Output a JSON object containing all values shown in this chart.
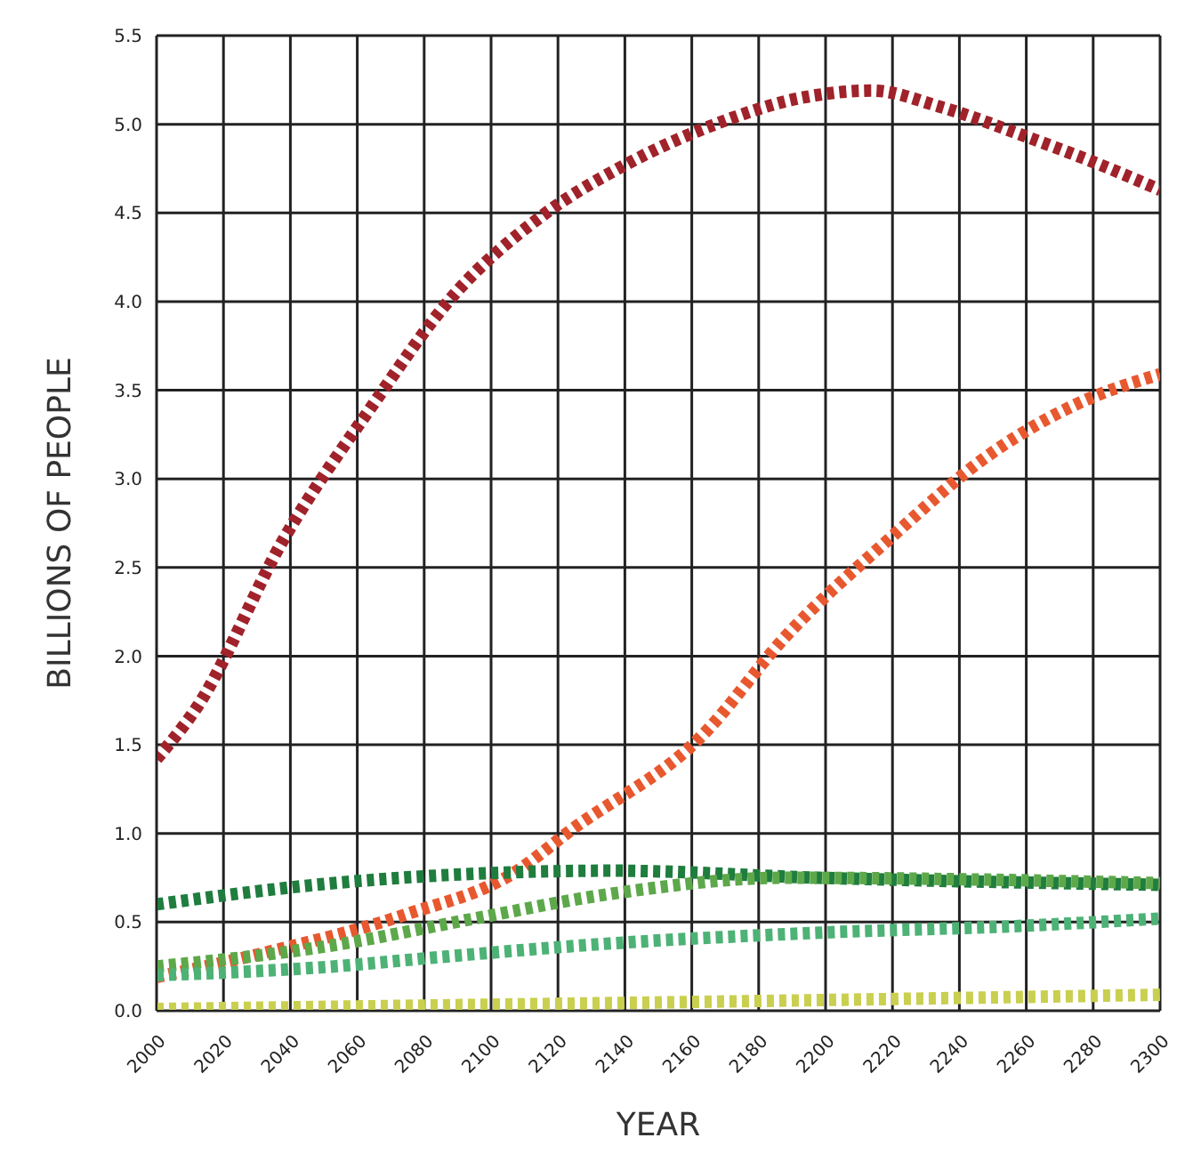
{
  "chart_data": {
    "type": "line",
    "xlabel": "YEAR",
    "ylabel": "BILLIONS OF PEOPLE",
    "xlim": [
      2000,
      2300
    ],
    "xticks": [
      2000,
      2020,
      2040,
      2060,
      2080,
      2100,
      2120,
      2140,
      2160,
      2180,
      2200,
      2220,
      2240,
      2260,
      2280,
      2300
    ],
    "ylim": [
      0,
      5.5
    ],
    "yticks": [
      {
        "value": 0,
        "label": "0.0"
      },
      {
        "value": 0.5,
        "label": "0.5"
      },
      {
        "value": 1,
        "label": "1.0"
      },
      {
        "value": 1.5,
        "label": "1.5"
      },
      {
        "value": 2,
        "label": "2.0"
      },
      {
        "value": 2.5,
        "label": "2.5"
      },
      {
        "value": 3,
        "label": "3.0"
      },
      {
        "value": 3.5,
        "label": "3.5"
      },
      {
        "value": 4,
        "label": "4.0"
      },
      {
        "value": 4.5,
        "label": "4.5"
      },
      {
        "value": 5,
        "label": "5.0"
      },
      {
        "value": 5.5,
        "label": "5.5"
      }
    ],
    "grid": true,
    "line_style": "dotted",
    "marker": "none",
    "x": [
      2000,
      2012,
      2038,
      2064,
      2089,
      2115,
      2141,
      2167,
      2193,
      2214,
      2234,
      2260,
      2281,
      2300
    ],
    "series": [
      {
        "color": "#a0222a",
        "values": [
          1.42,
          1.71,
          2.66,
          3.4,
          4.04,
          4.48,
          4.78,
          5.0,
          5.15,
          5.19,
          5.1,
          4.93,
          4.78,
          4.63
        ]
      },
      {
        "color": "#e8582f",
        "x": [
          2000,
          2033,
          2074,
          2107,
          2124,
          2163,
          2188,
          2219,
          2250,
          2276,
          2300
        ],
        "values": [
          0.19,
          0.33,
          0.54,
          0.78,
          1.02,
          1.55,
          2.11,
          2.66,
          3.15,
          3.43,
          3.59
        ]
      },
      {
        "color": "#1f7d3e",
        "x": [
          2000,
          2053,
          2136,
          2198,
          2300
        ],
        "values": [
          0.6,
          0.72,
          0.79,
          0.75,
          0.71
        ]
      },
      {
        "color": "#5da84a",
        "x": [
          2000,
          2053,
          2095,
          2136,
          2188,
          2300
        ],
        "values": [
          0.25,
          0.37,
          0.52,
          0.66,
          0.75,
          0.72
        ]
      },
      {
        "color": "#4db276",
        "x": [
          2000,
          2053,
          2083,
          2136,
          2198,
          2260,
          2300
        ],
        "values": [
          0.2,
          0.25,
          0.3,
          0.38,
          0.44,
          0.48,
          0.52
        ]
      },
      {
        "color": "#c9cf4f",
        "x": [
          2000,
          2198,
          2300
        ],
        "values": [
          0.01,
          0.06,
          0.09
        ]
      }
    ]
  }
}
